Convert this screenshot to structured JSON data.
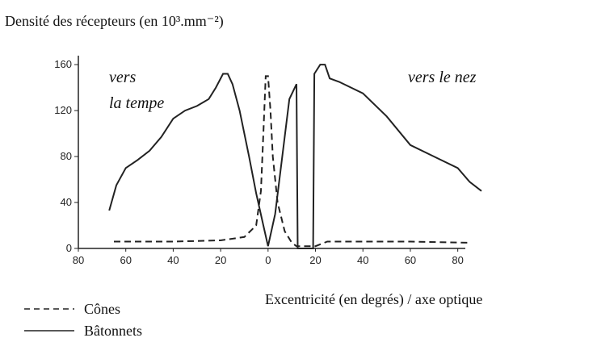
{
  "chart_data": {
    "type": "line",
    "title": "Densité des récepteurs (en 10³.mm⁻²)",
    "x_label": "Excentricité (en degrés) / axe optique",
    "annotations": [
      "vers",
      "la tempe",
      "vers le nez"
    ],
    "xlim": [
      -80,
      90
    ],
    "ylim": [
      0,
      165
    ],
    "xticks": [
      {
        "value": -80,
        "label": "80"
      },
      {
        "value": -60,
        "label": "60"
      },
      {
        "value": -40,
        "label": "40"
      },
      {
        "value": -20,
        "label": "20"
      },
      0,
      20,
      40,
      60,
      80
    ],
    "yticks": [
      0,
      40,
      80,
      120,
      160
    ],
    "series": [
      {
        "name": "Cônes",
        "color": "#222222",
        "dashed": true,
        "x": [
          -65,
          -40,
          -20,
          -10,
          -5,
          -3,
          -2,
          -1,
          0,
          1,
          2,
          4,
          7,
          10,
          12,
          20,
          25,
          40,
          60,
          85
        ],
        "values": [
          6,
          6,
          7,
          10,
          20,
          50,
          100,
          150,
          150,
          120,
          80,
          40,
          15,
          5,
          2,
          2,
          6,
          6,
          6,
          5
        ]
      },
      {
        "name": "Bâtonnets",
        "color": "#222222",
        "dashed": false,
        "x": [
          -67,
          -64,
          -60,
          -55,
          -50,
          -45,
          -40,
          -35,
          -30,
          -25,
          -22,
          -19,
          -17,
          -15,
          -12,
          -8,
          -5,
          -2,
          0,
          3,
          6,
          9,
          12,
          12.5,
          19,
          19.5,
          22,
          24,
          26,
          30,
          40,
          50,
          60,
          70,
          80,
          85,
          90
        ],
        "values": [
          33,
          55,
          70,
          77,
          85,
          97,
          113,
          120,
          124,
          130,
          140,
          152,
          152,
          143,
          120,
          80,
          48,
          20,
          2,
          30,
          80,
          130,
          143,
          0,
          0,
          152,
          160,
          160,
          148,
          145,
          135,
          115,
          90,
          80,
          70,
          58,
          50
        ]
      }
    ]
  }
}
